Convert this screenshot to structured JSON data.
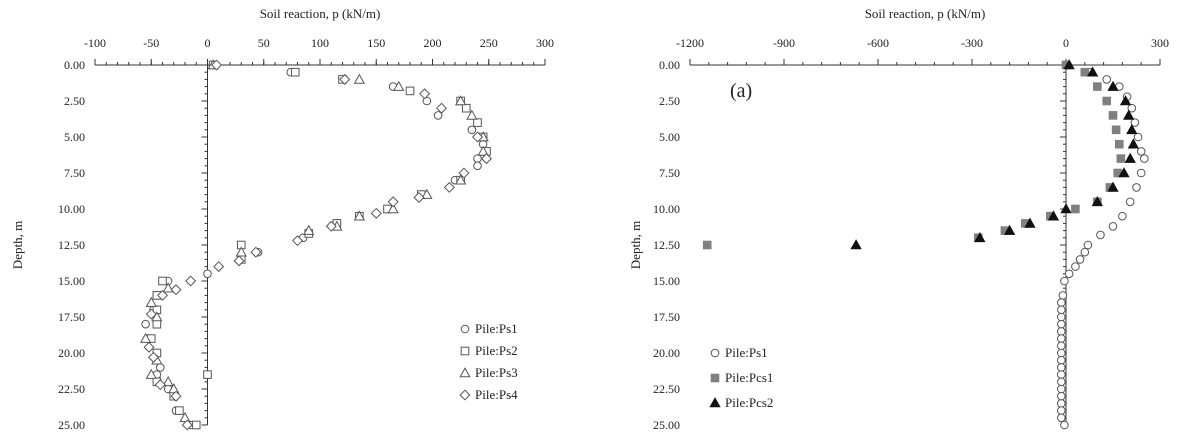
{
  "chart_data": [
    {
      "type": "scatter",
      "xlabel": "Soil reaction, p (kN/m)",
      "ylabel": "Depth, m",
      "xlim": [
        -100,
        300
      ],
      "ylim": [
        0,
        25
      ],
      "y_inverted": true,
      "x_axis_position": "top",
      "x_ticks": [
        "-100",
        "-50",
        "0",
        "50",
        "100",
        "150",
        "200",
        "250",
        "300"
      ],
      "x_tick_values": [
        -100,
        -50,
        0,
        50,
        100,
        150,
        200,
        250,
        300
      ],
      "y_ticks": [
        "0.00",
        "2.50",
        "5.00",
        "7.50",
        "10.00",
        "12.50",
        "15.00",
        "17.50",
        "20.00",
        "22.50",
        "25.00"
      ],
      "y_tick_values": [
        0,
        2.5,
        5,
        7.5,
        10,
        12.5,
        15,
        17.5,
        20,
        22.5,
        25
      ],
      "legend_position": "bottom-right",
      "annotation": "",
      "series": [
        {
          "name": "Pile:Ps1",
          "marker": "circle-open",
          "points": [
            [
              5,
              0
            ],
            [
              74,
              0.5
            ],
            [
              165,
              1.5
            ],
            [
              195,
              2.5
            ],
            [
              205,
              3.5
            ],
            [
              235,
              4.5
            ],
            [
              245,
              5.5
            ],
            [
              240,
              6.5
            ],
            [
              240,
              7
            ],
            [
              220,
              8
            ],
            [
              190,
              9
            ],
            [
              160,
              10
            ],
            [
              135,
              10.5
            ],
            [
              115,
              11
            ],
            [
              85,
              12
            ],
            [
              45,
              13
            ],
            [
              0,
              14.5
            ],
            [
              -35,
              15
            ],
            [
              -45,
              16
            ],
            [
              -48,
              17
            ],
            [
              -55,
              18
            ],
            [
              -52,
              19
            ],
            [
              -45,
              20
            ],
            [
              -42,
              21
            ],
            [
              -45,
              21.5
            ],
            [
              -35,
              22.5
            ],
            [
              -30,
              23
            ],
            [
              -28,
              24
            ],
            [
              -15,
              25
            ]
          ]
        },
        {
          "name": "Pile:Ps2",
          "marker": "square-open",
          "points": [
            [
              5,
              0
            ],
            [
              78,
              0.5
            ],
            [
              120,
              1
            ],
            [
              180,
              1.8
            ],
            [
              225,
              2.5
            ],
            [
              230,
              3
            ],
            [
              240,
              4
            ],
            [
              245,
              5
            ],
            [
              248,
              6
            ],
            [
              225,
              8
            ],
            [
              190,
              9
            ],
            [
              160,
              10
            ],
            [
              135,
              10.5
            ],
            [
              115,
              11
            ],
            [
              90,
              11.7
            ],
            [
              30,
              12.5
            ],
            [
              30,
              13.5
            ],
            [
              -40,
              15
            ],
            [
              -45,
              16
            ],
            [
              -45,
              17
            ],
            [
              -45,
              18
            ],
            [
              -50,
              19
            ],
            [
              -45,
              20
            ],
            [
              0,
              21.5
            ],
            [
              -45,
              22
            ],
            [
              -30,
              23
            ],
            [
              -25,
              24
            ],
            [
              -10,
              25
            ]
          ]
        },
        {
          "name": "Pile:Ps3",
          "marker": "triangle-open",
          "points": [
            [
              5,
              0
            ],
            [
              135,
              1
            ],
            [
              170,
              1.5
            ],
            [
              225,
              2.5
            ],
            [
              235,
              3.5
            ],
            [
              245,
              5
            ],
            [
              245,
              6
            ],
            [
              225,
              8
            ],
            [
              195,
              9
            ],
            [
              165,
              10
            ],
            [
              135,
              10.5
            ],
            [
              115,
              11.2
            ],
            [
              90,
              11.5
            ],
            [
              30,
              13
            ],
            [
              -35,
              15.5
            ],
            [
              -50,
              16.5
            ],
            [
              -45,
              17.5
            ],
            [
              -55,
              19
            ],
            [
              -45,
              20.5
            ],
            [
              -50,
              21.5
            ],
            [
              -35,
              22
            ],
            [
              -30,
              22.5
            ],
            [
              -20,
              24.5
            ]
          ]
        },
        {
          "name": "Pile:Ps4",
          "marker": "diamond-open",
          "points": [
            [
              8,
              0
            ],
            [
              122,
              1
            ],
            [
              193,
              2
            ],
            [
              208,
              3
            ],
            [
              240,
              5
            ],
            [
              248,
              6.5
            ],
            [
              228,
              7.5
            ],
            [
              215,
              8.5
            ],
            [
              188,
              9.2
            ],
            [
              165,
              9.5
            ],
            [
              150,
              10.3
            ],
            [
              110,
              11.2
            ],
            [
              80,
              12.2
            ],
            [
              43,
              13
            ],
            [
              28,
              13.6
            ],
            [
              10,
              14
            ],
            [
              -15,
              15
            ],
            [
              -28,
              15.6
            ],
            [
              -40,
              16
            ],
            [
              -50,
              17.3
            ],
            [
              -52,
              19.6
            ],
            [
              -48,
              20.3
            ],
            [
              -42,
              22.2
            ],
            [
              -28,
              23
            ],
            [
              -18,
              25
            ]
          ]
        }
      ]
    },
    {
      "type": "scatter",
      "xlabel": "Soil reaction, p (kN/m)",
      "ylabel": "Depth, m",
      "xlim": [
        -1200,
        300
      ],
      "ylim": [
        0,
        25
      ],
      "y_inverted": true,
      "x_axis_position": "top",
      "x_ticks": [
        "-1200",
        "-900",
        "-600",
        "-300",
        "0",
        "300"
      ],
      "x_tick_values": [
        -1200,
        -900,
        -600,
        -300,
        0,
        300
      ],
      "y_ticks": [
        "0.00",
        "2.50",
        "5.00",
        "7.50",
        "10.00",
        "12.50",
        "15.00",
        "17.50",
        "20.00",
        "22.50",
        "25.00"
      ],
      "y_tick_values": [
        0,
        2.5,
        5,
        7.5,
        10,
        12.5,
        15,
        17.5,
        20,
        22.5,
        25
      ],
      "legend_position": "bottom-left",
      "annotation": "(a)",
      "series": [
        {
          "name": "Pile:Ps1",
          "marker": "circle-open",
          "points": [
            [
              5,
              0
            ],
            [
              75,
              0.5
            ],
            [
              130,
              1
            ],
            [
              170,
              1.5
            ],
            [
              195,
              2.2
            ],
            [
              210,
              3
            ],
            [
              220,
              4
            ],
            [
              230,
              5
            ],
            [
              240,
              6
            ],
            [
              250,
              6.5
            ],
            [
              240,
              7.5
            ],
            [
              225,
              8.5
            ],
            [
              205,
              9.5
            ],
            [
              180,
              10.5
            ],
            [
              150,
              11.2
            ],
            [
              110,
              11.8
            ],
            [
              70,
              12.5
            ],
            [
              60,
              13
            ],
            [
              45,
              13.5
            ],
            [
              30,
              14
            ],
            [
              10,
              14.5
            ],
            [
              -5,
              15
            ],
            [
              -10,
              16
            ],
            [
              -15,
              16.5
            ],
            [
              -15,
              17
            ],
            [
              -15,
              17.5
            ],
            [
              -15,
              18
            ],
            [
              -15,
              18.5
            ],
            [
              -15,
              19
            ],
            [
              -15,
              19.5
            ],
            [
              -15,
              20
            ],
            [
              -15,
              20.5
            ],
            [
              -15,
              21
            ],
            [
              -15,
              21.5
            ],
            [
              -15,
              22
            ],
            [
              -15,
              22.5
            ],
            [
              -15,
              23
            ],
            [
              -15,
              23.5
            ],
            [
              -15,
              24
            ],
            [
              -15,
              24.5
            ],
            [
              -5,
              25
            ]
          ]
        },
        {
          "name": "Pile:Pcs1",
          "marker": "square-filled",
          "points": [
            [
              0,
              0
            ],
            [
              60,
              0.5
            ],
            [
              100,
              1.5
            ],
            [
              130,
              2.5
            ],
            [
              150,
              3.5
            ],
            [
              160,
              4.5
            ],
            [
              170,
              5.5
            ],
            [
              175,
              6.5
            ],
            [
              165,
              7.5
            ],
            [
              140,
              8.5
            ],
            [
              100,
              9.5
            ],
            [
              30,
              10
            ],
            [
              -50,
              10.5
            ],
            [
              -130,
              11
            ],
            [
              -195,
              11.5
            ],
            [
              -280,
              12
            ],
            [
              -1145,
              12.5
            ]
          ]
        },
        {
          "name": "Pile:Pcs2",
          "marker": "triangle-filled",
          "points": [
            [
              10,
              0
            ],
            [
              85,
              0.5
            ],
            [
              150,
              1.5
            ],
            [
              190,
              2.5
            ],
            [
              200,
              3.5
            ],
            [
              210,
              4.5
            ],
            [
              215,
              5.5
            ],
            [
              205,
              6.5
            ],
            [
              185,
              7.5
            ],
            [
              150,
              8.5
            ],
            [
              100,
              9.5
            ],
            [
              0,
              10
            ],
            [
              -40,
              10.5
            ],
            [
              -115,
              11
            ],
            [
              -180,
              11.5
            ],
            [
              -275,
              12
            ],
            [
              -670,
              12.5
            ]
          ]
        }
      ]
    }
  ]
}
